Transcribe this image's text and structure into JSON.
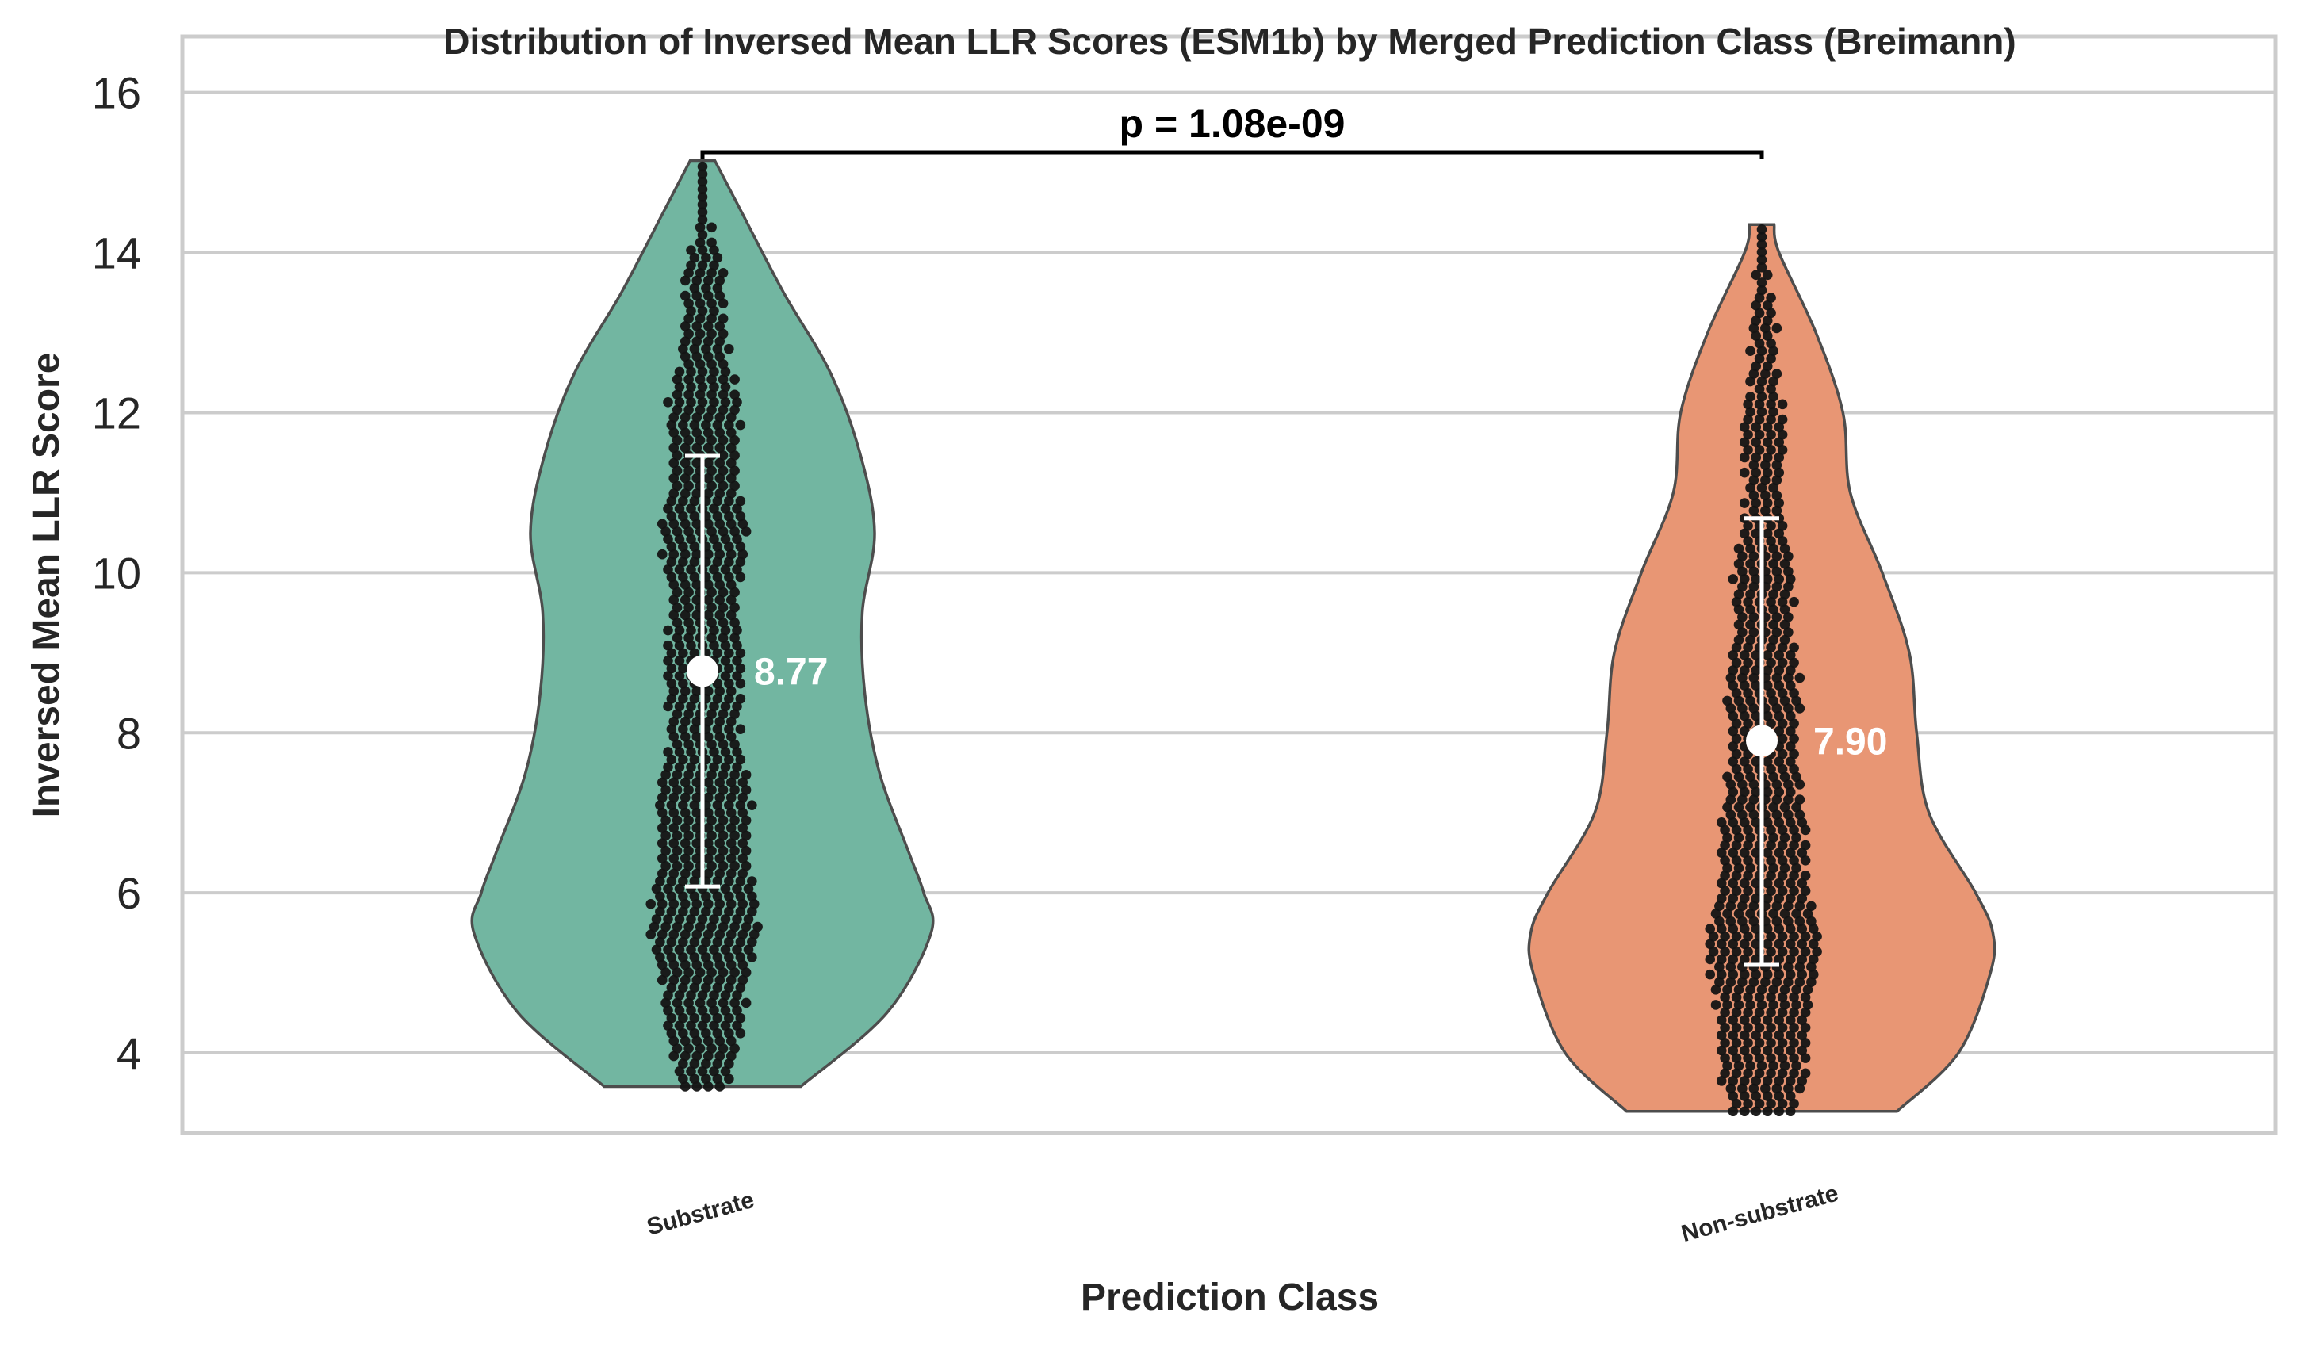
{
  "chart_data": {
    "type": "violin",
    "title": "Distribution of Inversed Mean LLR Scores (ESM1b) by Merged Prediction Class (Breimann)",
    "xlabel": "Prediction Class",
    "ylabel": "Inversed Mean LLR Score",
    "ylim": [
      3.0,
      16.7
    ],
    "yticks": [
      4,
      6,
      8,
      10,
      12,
      14,
      16
    ],
    "grid": "horizontal",
    "categories": [
      "Substrate",
      "Non-substrate"
    ],
    "series": [
      {
        "category": "Substrate",
        "color": "#72b6a1",
        "min": 3.58,
        "max": 15.15,
        "mean": 8.77,
        "mean_label": "8.77",
        "sd_low": 6.08,
        "sd_high": 11.46,
        "density": [
          [
            3.58,
            0.4
          ],
          [
            4.5,
            0.75
          ],
          [
            5.5,
            0.93
          ],
          [
            6.0,
            0.9
          ],
          [
            6.5,
            0.84
          ],
          [
            7.5,
            0.72
          ],
          [
            8.5,
            0.66
          ],
          [
            9.5,
            0.65
          ],
          [
            10.5,
            0.7
          ],
          [
            11.5,
            0.64
          ],
          [
            12.5,
            0.52
          ],
          [
            13.5,
            0.33
          ],
          [
            14.5,
            0.16
          ],
          [
            15.15,
            0.05
          ]
        ]
      },
      {
        "category": "Non-substrate",
        "color": "#e89674",
        "min": 3.27,
        "max": 14.35,
        "mean": 7.9,
        "mean_label": "7.90",
        "sd_low": 5.1,
        "sd_high": 10.68,
        "density": [
          [
            3.27,
            0.55
          ],
          [
            4.0,
            0.8
          ],
          [
            5.0,
            0.93
          ],
          [
            5.5,
            0.94
          ],
          [
            6.0,
            0.87
          ],
          [
            7.0,
            0.68
          ],
          [
            8.0,
            0.63
          ],
          [
            9.0,
            0.6
          ],
          [
            10.0,
            0.49
          ],
          [
            11.0,
            0.36
          ],
          [
            12.0,
            0.33
          ],
          [
            13.0,
            0.22
          ],
          [
            14.0,
            0.07
          ],
          [
            14.35,
            0.05
          ]
        ]
      }
    ],
    "significance": {
      "from": "Substrate",
      "to": "Non-substrate",
      "label": "p = 1.08e-09"
    }
  }
}
